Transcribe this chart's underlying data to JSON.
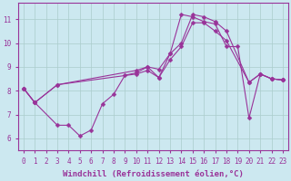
{
  "xlabel": "Windchill (Refroidissement éolien,°C)",
  "xlim": [
    -0.5,
    23.5
  ],
  "ylim": [
    5.5,
    11.7
  ],
  "xticks": [
    0,
    1,
    2,
    3,
    4,
    5,
    6,
    7,
    8,
    9,
    10,
    11,
    12,
    13,
    14,
    15,
    16,
    17,
    18,
    19,
    20,
    21,
    22,
    23
  ],
  "yticks": [
    6,
    7,
    8,
    9,
    10,
    11
  ],
  "background_color": "#cce8f0",
  "grid_color": "#aacccc",
  "line_color": "#993399",
  "line_width": 0.8,
  "marker": "D",
  "marker_size": 2.5,
  "series": [
    {
      "x": [
        0,
        1,
        3,
        10,
        11,
        12,
        13,
        14,
        15,
        16,
        17,
        18,
        20,
        21,
        22,
        23
      ],
      "y": [
        8.1,
        7.5,
        8.25,
        8.85,
        9.0,
        8.9,
        9.55,
        10.0,
        11.2,
        11.1,
        10.9,
        10.5,
        8.35,
        8.7,
        8.5,
        8.45
      ]
    },
    {
      "x": [
        0,
        1,
        3,
        10,
        11,
        12,
        13,
        14,
        15,
        16,
        17,
        18,
        20,
        21,
        22,
        23
      ],
      "y": [
        8.1,
        7.5,
        8.25,
        8.7,
        8.85,
        8.55,
        9.3,
        9.85,
        10.85,
        10.85,
        10.5,
        10.1,
        8.35,
        8.7,
        8.5,
        8.45
      ]
    },
    {
      "x": [
        0,
        1,
        3,
        4,
        5,
        6,
        7,
        8,
        9,
        10,
        11,
        12,
        13,
        14,
        15,
        16,
        17,
        18,
        19,
        20,
        21,
        22,
        23
      ],
      "y": [
        8.1,
        7.5,
        6.55,
        6.55,
        6.1,
        6.35,
        7.45,
        7.85,
        8.65,
        8.75,
        9.0,
        8.55,
        9.55,
        11.2,
        11.1,
        10.9,
        10.8,
        9.85,
        9.85,
        6.85,
        8.7,
        8.5,
        8.45
      ]
    }
  ],
  "font_color": "#993399",
  "tick_fontsize": 5.5,
  "xlabel_fontsize": 6.5
}
